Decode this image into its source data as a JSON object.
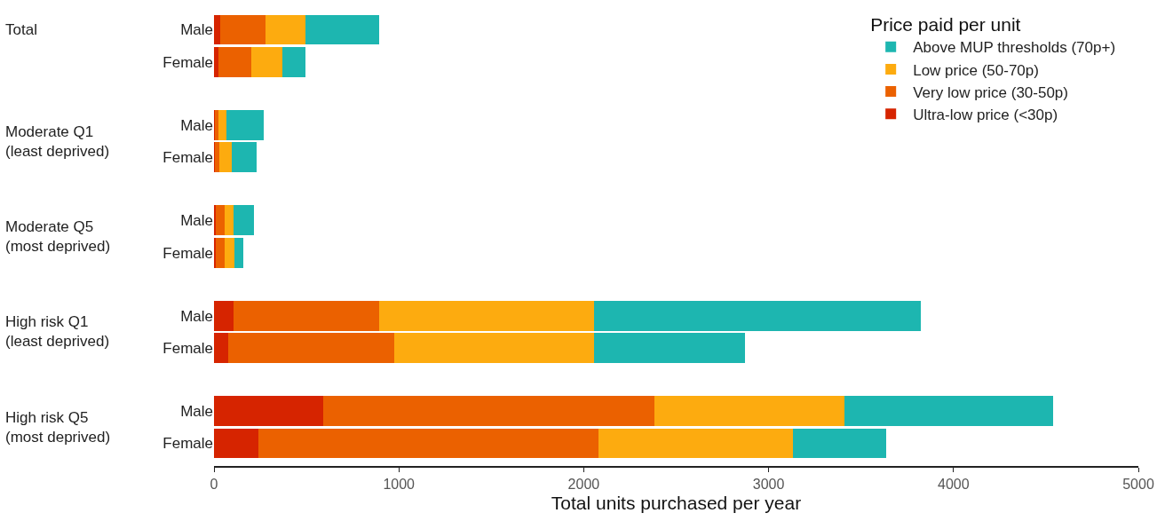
{
  "chart_data": {
    "type": "bar",
    "orientation": "horizontal",
    "stacked": true,
    "categories": [
      "Male",
      "Female",
      "Male",
      "Female",
      "Male",
      "Female",
      "Male",
      "Female",
      "Male",
      "Female"
    ],
    "annotations": [
      "Total",
      "Moderate Q1\n(least deprived)",
      "Moderate Q5\n(most deprived)",
      "High risk Q1\n(least deprived)",
      "High risk Q5\n(most deprived)"
    ],
    "series": [
      {
        "name": "Ultra-low price (<30p)",
        "color": "#d62400",
        "values": [
          35,
          22,
          3,
          3,
          11,
          8,
          105,
          77,
          590,
          240
        ]
      },
      {
        "name": "Very low price (30-50p)",
        "color": "#eb6100",
        "values": [
          245,
          180,
          20,
          27,
          47,
          50,
          790,
          900,
          1790,
          1840
        ]
      },
      {
        "name": "Low price (50-70p)",
        "color": "#fdab0f",
        "values": [
          215,
          170,
          46,
          66,
          46,
          54,
          1160,
          1080,
          1030,
          1050
        ]
      },
      {
        "name": "Above MUP thresholds (70p+)",
        "color": "#1db6b0",
        "values": [
          400,
          125,
          198,
          133,
          113,
          48,
          1770,
          815,
          1130,
          505
        ]
      }
    ],
    "xlabel": "Total units purchased per year",
    "xlim": [
      0,
      5000
    ],
    "xticks": [
      0,
      1000,
      2000,
      3000,
      4000,
      5000
    ],
    "legend_title": "Price paid per unit",
    "legend": "top right",
    "grid": false
  }
}
